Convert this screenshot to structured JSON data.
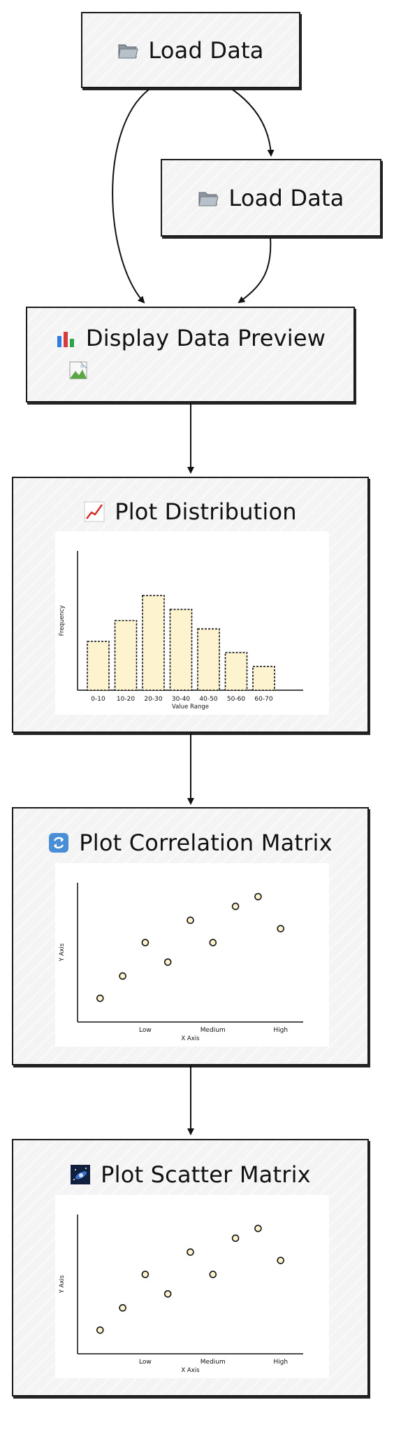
{
  "nodes": {
    "load_data_1": {
      "title": "Load Data",
      "icon": "folder-icon"
    },
    "load_data_2": {
      "title": "Load Data",
      "icon": "folder-icon"
    },
    "display_preview": {
      "title": "Display Data Preview",
      "icon": "bar-chart-icon",
      "image_icon": "broken-image-icon"
    },
    "plot_distribution": {
      "title": "Plot Distribution",
      "icon": "line-chart-icon"
    },
    "plot_correlation": {
      "title": "Plot Correlation Matrix",
      "icon": "refresh-icon"
    },
    "plot_scatter": {
      "title": "Plot Scatter Matrix",
      "icon": "galaxy-icon"
    }
  },
  "edges": [
    {
      "from": "load_data_1",
      "to": "load_data_2"
    },
    {
      "from": "load_data_1",
      "to": "display_preview"
    },
    {
      "from": "load_data_2",
      "to": "display_preview"
    },
    {
      "from": "display_preview",
      "to": "plot_distribution"
    },
    {
      "from": "plot_distribution",
      "to": "plot_correlation"
    },
    {
      "from": "plot_correlation",
      "to": "plot_scatter"
    }
  ],
  "chart_data": [
    {
      "type": "bar",
      "categories": [
        "0-10",
        "10-20",
        "20-30",
        "30-40",
        "40-50",
        "50-60",
        "60-70"
      ],
      "values": [
        35,
        50,
        68,
        58,
        44,
        27,
        17
      ],
      "xlabel": "Value Range",
      "ylabel": "Frequency",
      "ylim": [
        0,
        100
      ],
      "grid": false,
      "colors": {
        "fill": "#fdf3cf",
        "stroke": "#111111"
      }
    },
    {
      "type": "scatter",
      "x": [
        0.2,
        0.4,
        0.6,
        0.8,
        1.0,
        1.2,
        1.4,
        1.6,
        1.8
      ],
      "y": [
        0.17,
        0.33,
        0.57,
        0.43,
        0.73,
        0.57,
        0.83,
        0.9,
        0.67
      ],
      "xticks": [
        "Low",
        "Medium",
        "High"
      ],
      "xlabel": "X Axis",
      "ylabel": "Y Axis",
      "xlim": [
        0,
        2
      ],
      "ylim": [
        0,
        1
      ],
      "grid": false,
      "colors": {
        "fill": "#fdf3cf",
        "stroke": "#111111"
      }
    },
    {
      "type": "scatter",
      "x": [
        0.2,
        0.4,
        0.6,
        0.8,
        1.0,
        1.2,
        1.4,
        1.6,
        1.8
      ],
      "y": [
        0.17,
        0.33,
        0.57,
        0.43,
        0.73,
        0.57,
        0.83,
        0.9,
        0.67
      ],
      "xticks": [
        "Low",
        "Medium",
        "High"
      ],
      "xlabel": "X Axis",
      "ylabel": "Y Axis",
      "xlim": [
        0,
        2
      ],
      "ylim": [
        0,
        1
      ],
      "grid": false,
      "colors": {
        "fill": "#fdf3cf",
        "stroke": "#111111"
      }
    }
  ]
}
